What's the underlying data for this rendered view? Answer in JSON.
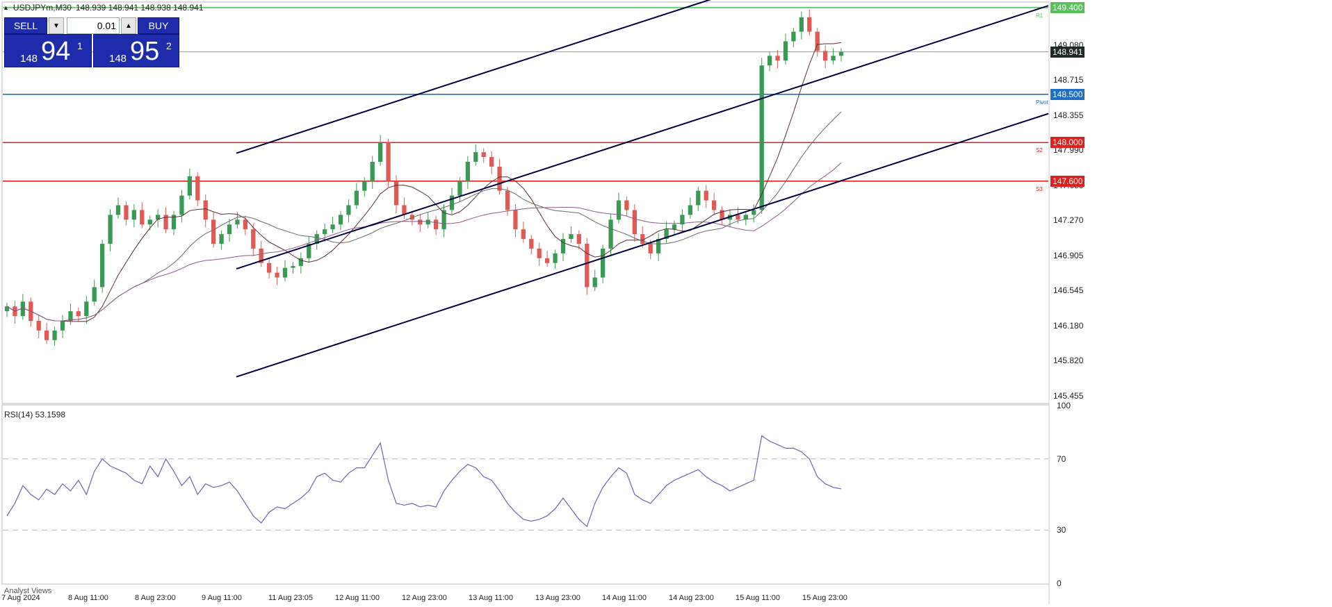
{
  "header": {
    "symbol": "USDJPYm,M30",
    "quote": "148.939 148.941 148.938 148.941"
  },
  "trade_panel": {
    "sell_label": "SELL",
    "buy_label": "BUY",
    "lot": "0.01",
    "sell_price_small": "148",
    "sell_price_big": "94",
    "sell_price_sup": "1",
    "buy_price_small": "148",
    "buy_price_big": "95",
    "buy_price_sup": "2"
  },
  "colors": {
    "bull": "#3a9a55",
    "bear": "#e05a55",
    "green_level": "#57c25a",
    "blue_level": "#1f6fc5",
    "red_level": "#e0201d",
    "current_price": "#202a26",
    "rsi_line": "#6a63b8",
    "channel": "#000045",
    "ma_dark": "#5a2e2e",
    "ma_grey": "#6a6a6a",
    "ma_purple": "#8a5a8a"
  },
  "chart_data": [
    {
      "type": "candlestick",
      "title": "USDJPYm,M30",
      "ylim": [
        145.3,
        149.45
      ],
      "y_ticks": [
        "149.440",
        "149.080",
        "148.715",
        "148.355",
        "147.990",
        "147.630",
        "147.270",
        "146.905",
        "146.545",
        "146.180",
        "145.820",
        "145.455"
      ],
      "x_ticks": [
        "7 Aug 2024",
        "8 Aug 11:00",
        "8 Aug 23:00",
        "9 Aug 11:00",
        "11 Aug 23:05",
        "12 Aug 11:00",
        "12 Aug 23:00",
        "13 Aug 11:00",
        "13 Aug 23:00",
        "14 Aug 11:00",
        "14 Aug 23:00",
        "15 Aug 11:00",
        "15 Aug 23:00"
      ],
      "levels": [
        {
          "name": "R1",
          "value": 149.4,
          "label": "149.400",
          "color": "#57c25a"
        },
        {
          "name": "Pivot",
          "value": 148.5,
          "label": "148.500",
          "color": "#1f6fc5"
        },
        {
          "name": "S2",
          "value": 148.0,
          "label": "148.000",
          "color": "#e0201d"
        },
        {
          "name": "S3",
          "value": 147.6,
          "label": "147.600",
          "color": "#e0201d"
        }
      ],
      "current_price": {
        "value": 148.941,
        "label": "148.941"
      },
      "closes": [
        146.3,
        146.2,
        146.35,
        146.15,
        146.05,
        145.95,
        146.05,
        146.15,
        146.25,
        146.2,
        146.35,
        146.5,
        146.95,
        147.25,
        147.35,
        147.2,
        147.3,
        147.15,
        147.2,
        147.25,
        147.1,
        147.25,
        147.45,
        147.65,
        147.4,
        147.2,
        146.95,
        147.05,
        147.15,
        147.2,
        147.1,
        146.9,
        146.75,
        146.65,
        146.6,
        146.7,
        146.72,
        146.8,
        146.95,
        147.05,
        147.1,
        147.15,
        147.25,
        147.35,
        147.5,
        147.6,
        147.8,
        148.0,
        147.6,
        147.35,
        147.25,
        147.2,
        147.15,
        147.2,
        147.1,
        147.3,
        147.45,
        147.6,
        147.8,
        147.9,
        147.85,
        147.75,
        147.5,
        147.3,
        147.1,
        147.0,
        146.9,
        146.8,
        146.75,
        146.85,
        147.0,
        147.05,
        146.95,
        146.5,
        146.6,
        146.9,
        147.2,
        147.4,
        147.3,
        147.05,
        146.95,
        146.85,
        147.0,
        147.1,
        147.15,
        147.25,
        147.35,
        147.5,
        147.4,
        147.3,
        147.2,
        147.25,
        147.2,
        147.25,
        147.3,
        148.8,
        148.9,
        148.85,
        149.05,
        149.15,
        149.3,
        149.15,
        148.95,
        148.85,
        148.9,
        148.941
      ],
      "ma_series": [
        {
          "period": "fast",
          "color": "#5a2e2e"
        },
        {
          "period": "medium",
          "color": "#6a6a6a"
        },
        {
          "period": "slow",
          "color": "#8a5a8a"
        }
      ]
    },
    {
      "type": "line",
      "title": "RSI(14) 53.1598",
      "indicator": "RSI(14)",
      "current_value": 53.1598,
      "ylim": [
        0,
        100
      ],
      "y_ticks": [
        100,
        70,
        30,
        0
      ],
      "levels": [
        70,
        30
      ],
      "values": [
        38,
        45,
        55,
        50,
        47,
        53,
        50,
        56,
        52,
        58,
        50,
        63,
        70,
        66,
        64,
        62,
        58,
        56,
        66,
        60,
        70,
        63,
        55,
        60,
        50,
        56,
        54,
        55,
        57,
        52,
        45,
        38,
        34,
        40,
        43,
        42,
        45,
        48,
        52,
        60,
        62,
        58,
        57,
        62,
        65,
        65,
        72,
        79,
        58,
        45,
        44,
        45,
        43,
        44,
        43,
        52,
        58,
        63,
        67,
        65,
        60,
        58,
        52,
        45,
        40,
        36,
        35,
        36,
        38,
        42,
        48,
        42,
        36,
        32,
        45,
        54,
        60,
        65,
        62,
        50,
        47,
        45,
        50,
        55,
        58,
        60,
        62,
        64,
        60,
        57,
        55,
        52,
        54,
        56,
        58,
        83,
        80,
        78,
        76,
        76,
        74,
        70,
        60,
        56,
        54,
        53.16
      ]
    }
  ],
  "bottom_tab": "Analyst Views"
}
